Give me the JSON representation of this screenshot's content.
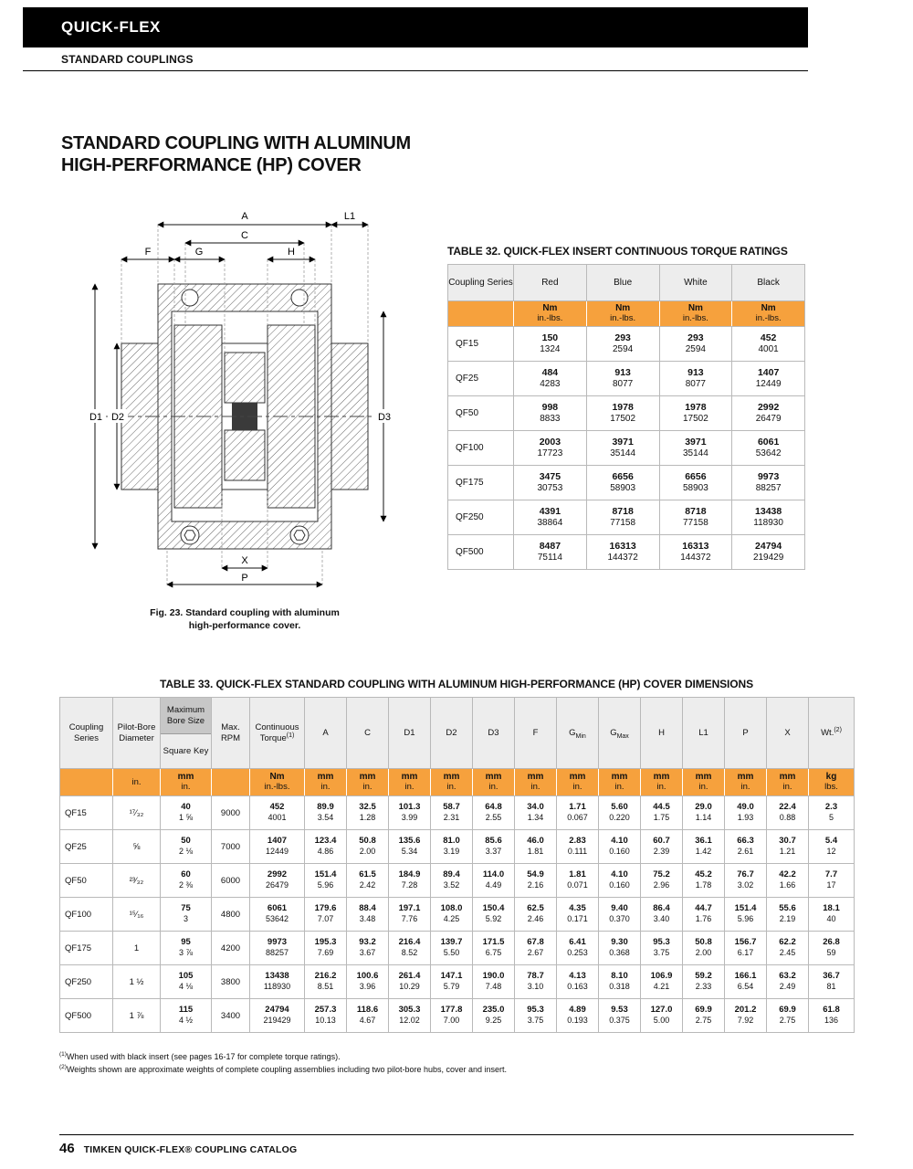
{
  "colors": {
    "orange": "#F6A13D",
    "header_bar": "#000000",
    "header_cell": "#EDEDED",
    "dark_cell": "#C7C7C7"
  },
  "header": {
    "brand": "QUICK-FLEX",
    "section": "STANDARD COUPLINGS"
  },
  "title": {
    "line1": "STANDARD COUPLING WITH ALUMINUM",
    "line2": "HIGH-PERFORMANCE (HP) COVER"
  },
  "figure": {
    "caption_line1": "Fig. 23. Standard coupling with aluminum",
    "caption_line2": "high-performance cover.",
    "dims": {
      "A": "A",
      "C": "C",
      "L1": "L1",
      "F": "F",
      "G": "G",
      "H": "H",
      "D1": "D1",
      "D2": "D2",
      "D3": "D3",
      "X": "X",
      "P": "P"
    }
  },
  "table32": {
    "title": "TABLE 32. QUICK-FLEX INSERT CONTINUOUS TORQUE RATINGS",
    "headers": [
      "Coupling Series",
      "Red",
      "Blue",
      "White",
      "Black"
    ],
    "unit_primary": "Nm",
    "unit_secondary": "in.-lbs.",
    "rows": [
      {
        "series": "QF15",
        "values": [
          [
            "150",
            "1324"
          ],
          [
            "293",
            "2594"
          ],
          [
            "293",
            "2594"
          ],
          [
            "452",
            "4001"
          ]
        ]
      },
      {
        "series": "QF25",
        "values": [
          [
            "484",
            "4283"
          ],
          [
            "913",
            "8077"
          ],
          [
            "913",
            "8077"
          ],
          [
            "1407",
            "12449"
          ]
        ]
      },
      {
        "series": "QF50",
        "values": [
          [
            "998",
            "8833"
          ],
          [
            "1978",
            "17502"
          ],
          [
            "1978",
            "17502"
          ],
          [
            "2992",
            "26479"
          ]
        ]
      },
      {
        "series": "QF100",
        "values": [
          [
            "2003",
            "17723"
          ],
          [
            "3971",
            "35144"
          ],
          [
            "3971",
            "35144"
          ],
          [
            "6061",
            "53642"
          ]
        ]
      },
      {
        "series": "QF175",
        "values": [
          [
            "3475",
            "30753"
          ],
          [
            "6656",
            "58903"
          ],
          [
            "6656",
            "58903"
          ],
          [
            "9973",
            "88257"
          ]
        ]
      },
      {
        "series": "QF250",
        "values": [
          [
            "4391",
            "38864"
          ],
          [
            "8718",
            "77158"
          ],
          [
            "8718",
            "77158"
          ],
          [
            "13438",
            "118930"
          ]
        ]
      },
      {
        "series": "QF500",
        "values": [
          [
            "8487",
            "75114"
          ],
          [
            "16313",
            "144372"
          ],
          [
            "16313",
            "144372"
          ],
          [
            "24794",
            "219429"
          ]
        ]
      }
    ]
  },
  "table33": {
    "title": "TABLE 33. QUICK-FLEX STANDARD COUPLING WITH ALUMINUM HIGH-PERFORMANCE (HP) COVER DIMENSIONS",
    "headers": {
      "series": "Coupling Series",
      "pilot": "Pilot-Bore Diameter",
      "maxbore_top": "Maximum Bore Size",
      "maxbore_bottom": "Square Key",
      "rpm": "Max. RPM",
      "torque": "Continuous Torque",
      "torque_sup": "(1)",
      "wt": "Wt.",
      "wt_sup": "(2)"
    },
    "dim_headers": [
      {
        "t": "A"
      },
      {
        "t": "C"
      },
      {
        "t": "D1"
      },
      {
        "t": "D2"
      },
      {
        "t": "D3"
      },
      {
        "t": "F"
      },
      {
        "t": "G",
        "sub": "Min"
      },
      {
        "t": "G",
        "sub": "Max"
      },
      {
        "t": "H"
      },
      {
        "t": "L1"
      },
      {
        "t": "P"
      },
      {
        "t": "X"
      }
    ],
    "units": {
      "pilot": "in.",
      "maxbore": [
        "mm",
        "in."
      ],
      "torque": [
        "Nm",
        "in.-lbs."
      ],
      "dim": [
        "mm",
        "in."
      ],
      "wt": [
        "kg",
        "lbs."
      ]
    },
    "rows": [
      {
        "series": "QF15",
        "pilot": "¹⁷⁄₃₂",
        "maxbore": [
          "40",
          "1 ⅝"
        ],
        "rpm": "9000",
        "torque": [
          "452",
          "4001"
        ],
        "dims": [
          [
            "89.9",
            "3.54"
          ],
          [
            "32.5",
            "1.28"
          ],
          [
            "101.3",
            "3.99"
          ],
          [
            "58.7",
            "2.31"
          ],
          [
            "64.8",
            "2.55"
          ],
          [
            "34.0",
            "1.34"
          ],
          [
            "1.71",
            "0.067"
          ],
          [
            "5.60",
            "0.220"
          ],
          [
            "44.5",
            "1.75"
          ],
          [
            "29.0",
            "1.14"
          ],
          [
            "49.0",
            "1.93"
          ],
          [
            "22.4",
            "0.88"
          ]
        ],
        "wt": [
          "2.3",
          "5"
        ]
      },
      {
        "series": "QF25",
        "pilot": "⅝",
        "maxbore": [
          "50",
          "2 ⅛"
        ],
        "rpm": "7000",
        "torque": [
          "1407",
          "12449"
        ],
        "dims": [
          [
            "123.4",
            "4.86"
          ],
          [
            "50.8",
            "2.00"
          ],
          [
            "135.6",
            "5.34"
          ],
          [
            "81.0",
            "3.19"
          ],
          [
            "85.6",
            "3.37"
          ],
          [
            "46.0",
            "1.81"
          ],
          [
            "2.83",
            "0.111"
          ],
          [
            "4.10",
            "0.160"
          ],
          [
            "60.7",
            "2.39"
          ],
          [
            "36.1",
            "1.42"
          ],
          [
            "66.3",
            "2.61"
          ],
          [
            "30.7",
            "1.21"
          ]
        ],
        "wt": [
          "5.4",
          "12"
        ]
      },
      {
        "series": "QF50",
        "pilot": "²³⁄₃₂",
        "maxbore": [
          "60",
          "2 ⅜"
        ],
        "rpm": "6000",
        "torque": [
          "2992",
          "26479"
        ],
        "dims": [
          [
            "151.4",
            "5.96"
          ],
          [
            "61.5",
            "2.42"
          ],
          [
            "184.9",
            "7.28"
          ],
          [
            "89.4",
            "3.52"
          ],
          [
            "114.0",
            "4.49"
          ],
          [
            "54.9",
            "2.16"
          ],
          [
            "1.81",
            "0.071"
          ],
          [
            "4.10",
            "0.160"
          ],
          [
            "75.2",
            "2.96"
          ],
          [
            "45.2",
            "1.78"
          ],
          [
            "76.7",
            "3.02"
          ],
          [
            "42.2",
            "1.66"
          ]
        ],
        "wt": [
          "7.7",
          "17"
        ]
      },
      {
        "series": "QF100",
        "pilot": "¹⁵⁄₁₆",
        "maxbore": [
          "75",
          "3"
        ],
        "rpm": "4800",
        "torque": [
          "6061",
          "53642"
        ],
        "dims": [
          [
            "179.6",
            "7.07"
          ],
          [
            "88.4",
            "3.48"
          ],
          [
            "197.1",
            "7.76"
          ],
          [
            "108.0",
            "4.25"
          ],
          [
            "150.4",
            "5.92"
          ],
          [
            "62.5",
            "2.46"
          ],
          [
            "4.35",
            "0.171"
          ],
          [
            "9.40",
            "0.370"
          ],
          [
            "86.4",
            "3.40"
          ],
          [
            "44.7",
            "1.76"
          ],
          [
            "151.4",
            "5.96"
          ],
          [
            "55.6",
            "2.19"
          ]
        ],
        "wt": [
          "18.1",
          "40"
        ]
      },
      {
        "series": "QF175",
        "pilot": "1",
        "maxbore": [
          "95",
          "3 ⅞"
        ],
        "rpm": "4200",
        "torque": [
          "9973",
          "88257"
        ],
        "dims": [
          [
            "195.3",
            "7.69"
          ],
          [
            "93.2",
            "3.67"
          ],
          [
            "216.4",
            "8.52"
          ],
          [
            "139.7",
            "5.50"
          ],
          [
            "171.5",
            "6.75"
          ],
          [
            "67.8",
            "2.67"
          ],
          [
            "6.41",
            "0.253"
          ],
          [
            "9.30",
            "0.368"
          ],
          [
            "95.3",
            "3.75"
          ],
          [
            "50.8",
            "2.00"
          ],
          [
            "156.7",
            "6.17"
          ],
          [
            "62.2",
            "2.45"
          ]
        ],
        "wt": [
          "26.8",
          "59"
        ]
      },
      {
        "series": "QF250",
        "pilot": "1 ½",
        "maxbore": [
          "105",
          "4 ⅛"
        ],
        "rpm": "3800",
        "torque": [
          "13438",
          "118930"
        ],
        "dims": [
          [
            "216.2",
            "8.51"
          ],
          [
            "100.6",
            "3.96"
          ],
          [
            "261.4",
            "10.29"
          ],
          [
            "147.1",
            "5.79"
          ],
          [
            "190.0",
            "7.48"
          ],
          [
            "78.7",
            "3.10"
          ],
          [
            "4.13",
            "0.163"
          ],
          [
            "8.10",
            "0.318"
          ],
          [
            "106.9",
            "4.21"
          ],
          [
            "59.2",
            "2.33"
          ],
          [
            "166.1",
            "6.54"
          ],
          [
            "63.2",
            "2.49"
          ]
        ],
        "wt": [
          "36.7",
          "81"
        ]
      },
      {
        "series": "QF500",
        "pilot": "1 ⅞",
        "maxbore": [
          "115",
          "4 ½"
        ],
        "rpm": "3400",
        "torque": [
          "24794",
          "219429"
        ],
        "dims": [
          [
            "257.3",
            "10.13"
          ],
          [
            "118.6",
            "4.67"
          ],
          [
            "305.3",
            "12.02"
          ],
          [
            "177.8",
            "7.00"
          ],
          [
            "235.0",
            "9.25"
          ],
          [
            "95.3",
            "3.75"
          ],
          [
            "4.89",
            "0.193"
          ],
          [
            "9.53",
            "0.375"
          ],
          [
            "127.0",
            "5.00"
          ],
          [
            "69.9",
            "2.75"
          ],
          [
            "201.2",
            "7.92"
          ],
          [
            "69.9",
            "2.75"
          ]
        ],
        "wt": [
          "61.8",
          "136"
        ]
      }
    ]
  },
  "footnotes": [
    {
      "sup": "(1)",
      "text": "When used with black insert (see pages 16-17 for complete torque ratings)."
    },
    {
      "sup": "(2)",
      "text": "Weights shown are approximate weights of complete coupling assemblies including two pilot-bore hubs, cover and insert."
    }
  ],
  "footer": {
    "page": "46",
    "text": "TIMKEN QUICK-FLEX® COUPLING CATALOG"
  }
}
